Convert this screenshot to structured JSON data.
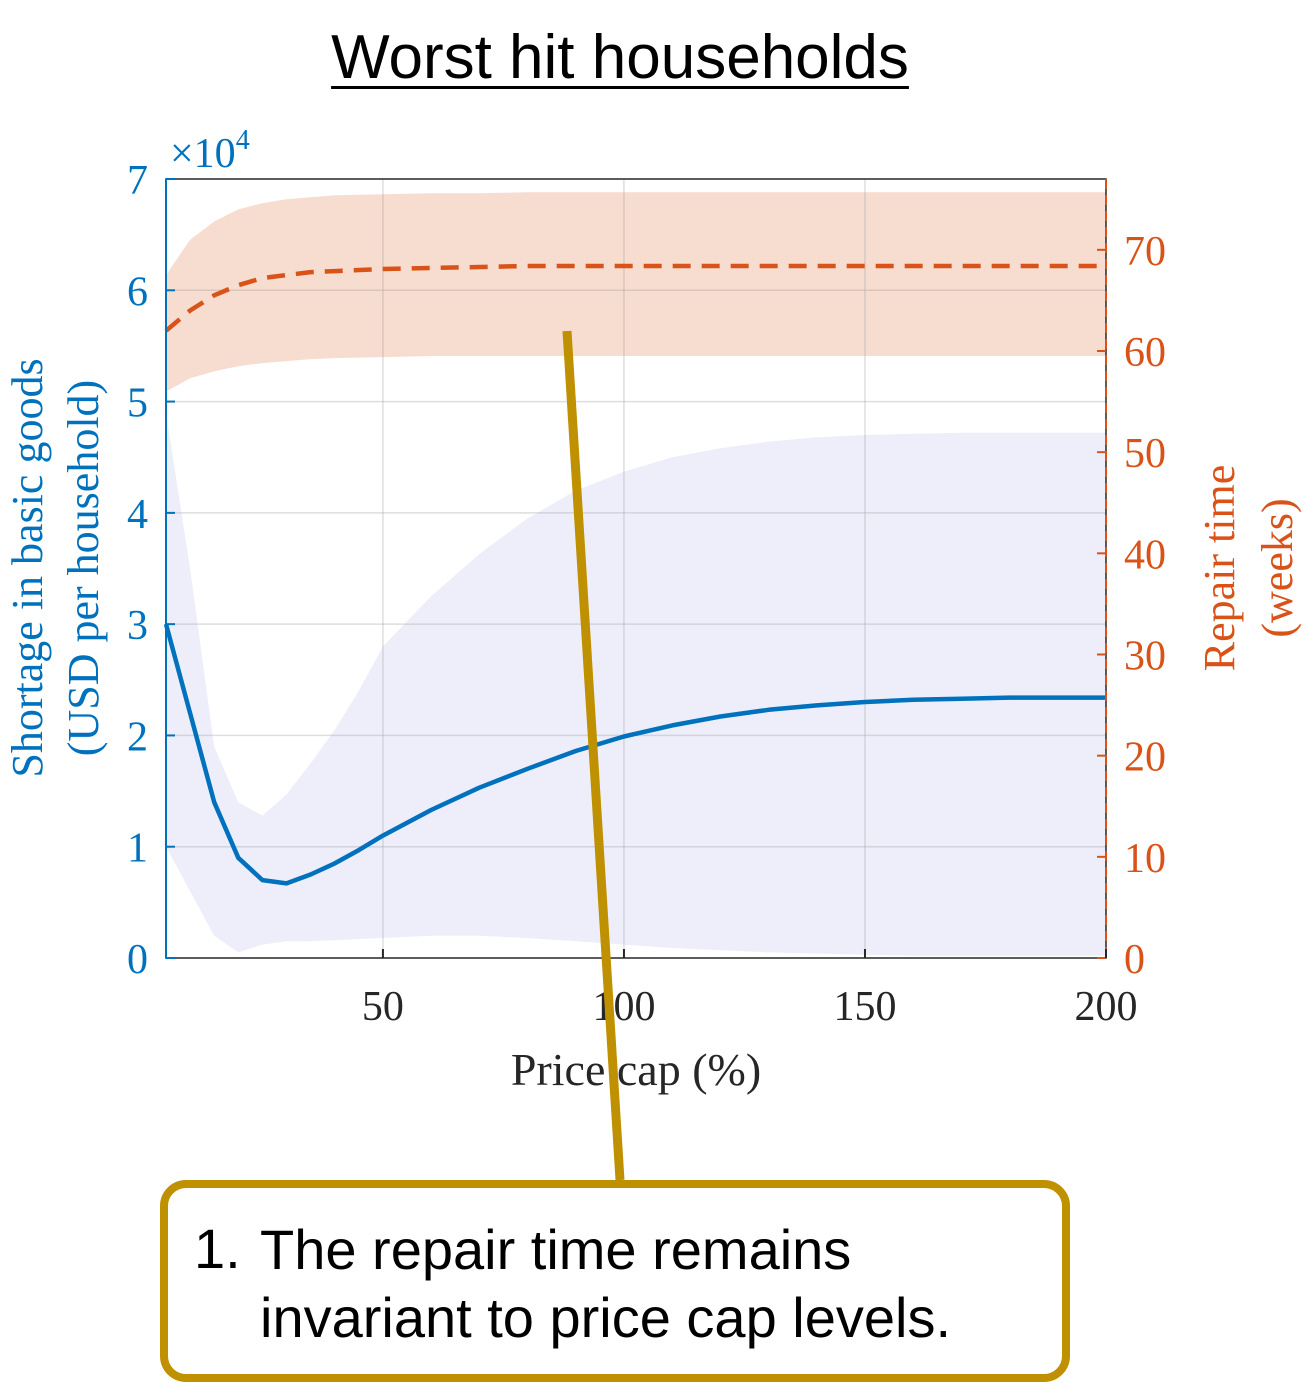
{
  "title": "Worst hit households",
  "chart_data": {
    "type": "line",
    "xlabel": "Price cap (%)",
    "xlim": [
      5,
      200
    ],
    "xticks": [
      50,
      100,
      150,
      200
    ],
    "left_axis": {
      "label_line1": "Shortage in basic goods",
      "label_line2": "(USD per household)",
      "exponent_label": "×10",
      "exponent_power": "4",
      "ylim": [
        0,
        70000
      ],
      "ticks": [
        0,
        10000,
        20000,
        30000,
        40000,
        50000,
        60000,
        70000
      ],
      "tick_labels": [
        "0",
        "1",
        "2",
        "3",
        "4",
        "5",
        "6",
        "7"
      ],
      "color": "#0072bd"
    },
    "right_axis": {
      "label_line1": "Repair time",
      "label_line2": "(weeks)",
      "ylim": [
        0,
        77
      ],
      "ticks": [
        0,
        10,
        20,
        30,
        40,
        50,
        60,
        70
      ],
      "tick_labels": [
        "0",
        "10",
        "20",
        "30",
        "40",
        "50",
        "60",
        "70"
      ],
      "color": "#d95319"
    },
    "grid": true,
    "series": [
      {
        "axis": "left",
        "style": "solid",
        "color": "#0072bd",
        "band_color": "#eeeefb",
        "x": [
          5,
          10,
          15,
          20,
          25,
          30,
          35,
          40,
          45,
          50,
          60,
          70,
          80,
          90,
          100,
          110,
          120,
          130,
          140,
          150,
          160,
          170,
          180,
          190,
          200
        ],
        "y": [
          30000,
          22000,
          14000,
          9000,
          7000,
          6700,
          7500,
          8500,
          9700,
          11000,
          13300,
          15300,
          17000,
          18600,
          19900,
          20900,
          21700,
          22300,
          22700,
          23000,
          23200,
          23300,
          23400,
          23400,
          23400
        ],
        "band_lower": [
          10000,
          6000,
          2000,
          500,
          1200,
          1500,
          1500,
          1600,
          1700,
          1800,
          2000,
          2000,
          1800,
          1500,
          1200,
          900,
          700,
          500,
          400,
          300,
          200,
          200,
          200,
          200,
          200
        ],
        "band_upper": [
          49000,
          35000,
          19000,
          14000,
          12800,
          14700,
          17500,
          20500,
          24000,
          28000,
          32500,
          36300,
          39500,
          42000,
          43700,
          45000,
          45800,
          46400,
          46800,
          47000,
          47100,
          47200,
          47200,
          47200,
          47200
        ]
      },
      {
        "axis": "right",
        "style": "dashed",
        "color": "#d95319",
        "band_color": "#f7dcd0",
        "x": [
          5,
          10,
          15,
          20,
          25,
          30,
          35,
          40,
          50,
          60,
          70,
          80,
          100,
          120,
          150,
          200
        ],
        "y": [
          62,
          64,
          65.5,
          66.5,
          67.2,
          67.5,
          67.8,
          67.9,
          68.1,
          68.2,
          68.3,
          68.4,
          68.4,
          68.4,
          68.4,
          68.4
        ],
        "band_lower": [
          56,
          57.3,
          58,
          58.5,
          58.8,
          59,
          59.2,
          59.3,
          59.4,
          59.5,
          59.5,
          59.5,
          59.5,
          59.5,
          59.5,
          59.5
        ],
        "band_upper": [
          67.5,
          71,
          72.8,
          74,
          74.6,
          75,
          75.2,
          75.4,
          75.5,
          75.6,
          75.6,
          75.7,
          75.7,
          75.7,
          75.7,
          75.7
        ]
      }
    ]
  },
  "callout": {
    "number": "1.",
    "text": "The repair time remains invariant to price cap levels.",
    "border_color": "#bf9000"
  }
}
